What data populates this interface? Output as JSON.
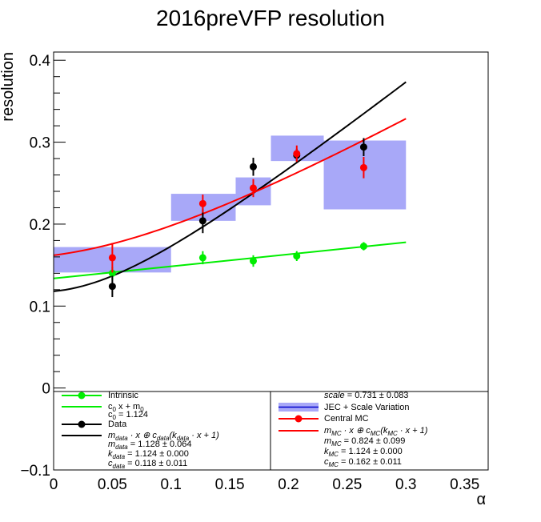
{
  "chart_data": {
    "type": "scatter",
    "title": "2016preVFP resolution",
    "xlabel": "α",
    "ylabel": "resolution",
    "xlim": [
      0,
      0.37
    ],
    "ylim": [
      -0.1,
      0.41
    ],
    "x_ticks": [
      "0",
      "0.05",
      "0.1",
      "0.15",
      "0.2",
      "0.25",
      "0.3",
      "0.35"
    ],
    "y_ticks": [
      "−0.1",
      "0",
      "0.1",
      "0.2",
      "0.3",
      "0.4"
    ],
    "grid": false,
    "legend_placement": "bottom",
    "series": [
      {
        "name": "Intrinsic",
        "color": "#00ee00",
        "x": [
          0.05,
          0.127,
          0.17,
          0.207,
          0.264
        ],
        "y": [
          0.14,
          0.159,
          0.155,
          0.161,
          0.173
        ],
        "yerr": [
          0.008,
          0.008,
          0.007,
          0.006,
          0.005
        ]
      },
      {
        "name": "Data",
        "color": "#000000",
        "x": [
          0.05,
          0.127,
          0.17,
          0.207,
          0.264
        ],
        "y": [
          0.124,
          0.204,
          0.27,
          0.284,
          0.294
        ],
        "yerr": [
          0.013,
          0.015,
          0.011,
          0.008,
          0.011
        ]
      },
      {
        "name": "Central MC",
        "color": "#ff0000",
        "x": [
          0.05,
          0.127,
          0.17,
          0.207,
          0.264
        ],
        "y": [
          0.159,
          0.225,
          0.244,
          0.286,
          0.269
        ],
        "yerr": [
          0.018,
          0.011,
          0.011,
          0.01,
          0.013
        ]
      }
    ],
    "boxes": {
      "name": "JEC + Scale Variation",
      "color": "#a8a8f8",
      "items": [
        {
          "x0": 0.0,
          "x1": 0.1,
          "y0": 0.141,
          "y1": 0.172
        },
        {
          "x0": 0.1,
          "x1": 0.155,
          "y0": 0.204,
          "y1": 0.237
        },
        {
          "x0": 0.155,
          "x1": 0.185,
          "y0": 0.223,
          "y1": 0.257
        },
        {
          "x0": 0.185,
          "x1": 0.23,
          "y0": 0.277,
          "y1": 0.308
        },
        {
          "x0": 0.23,
          "x1": 0.3,
          "y0": 0.218,
          "y1": 0.302
        }
      ]
    },
    "fits": [
      {
        "name": "c0 x + m0",
        "color": "#00ee00",
        "x_range": [
          0,
          0.3
        ],
        "y_at": [
          0.1338,
          0.1778
        ]
      },
      {
        "name": "data fit",
        "color": "#000000",
        "x_range": [
          0,
          0.3
        ],
        "m": 1.128,
        "k": 1.124,
        "c": 0.118
      },
      {
        "name": "MC fit",
        "color": "#ff0000",
        "x_range": [
          0,
          0.3
        ],
        "m": 0.824,
        "k": 1.124,
        "c": 0.162
      }
    ]
  },
  "legend": {
    "left": {
      "intrinsic": "Intrinsic",
      "fit_c0_main": "c",
      "fit_c0_sub": "0",
      "fit_c0_mid": " x + m",
      "fit_c0_sub2": "0",
      "c0_label": "c",
      "c0_sub": "0",
      "c0_value": " = 1.124",
      "data": "Data",
      "data_fit_formula": "m",
      "data_fit_sub": "data",
      "data_fit_rest": " · x ⊕ c",
      "data_fit_sub2": "data",
      "data_fit_rest2": "(k",
      "data_fit_sub3": "data",
      "data_fit_rest3": " · x + 1)",
      "m_data_label": "m",
      "m_data_sub": "data",
      "m_data_value": " = 1.128 ± 0.064",
      "k_data_label": "k",
      "k_data_sub": "data",
      "k_data_value": " = 1.124 ± 0.000",
      "c_data_label": "c",
      "c_data_sub": "data",
      "c_data_value": " = 0.118 ± 0.011"
    },
    "right": {
      "scale_label": "scale",
      "scale_value": " = 0.731 ± 0.083",
      "jec": "JEC + Scale Variation",
      "central_mc": "Central MC",
      "mc_fit_formula": "m",
      "mc_fit_sub": "MC",
      "mc_fit_rest": " · x ⊕ c",
      "mc_fit_sub2": "MC",
      "mc_fit_rest2": "(k",
      "mc_fit_sub3": "MC",
      "mc_fit_rest3": " · x + 1)",
      "m_mc_label": "m",
      "m_mc_sub": "MC",
      "m_mc_value": " = 0.824 ± 0.099",
      "k_mc_label": "k",
      "k_mc_sub": "MC",
      "k_mc_value": " = 1.124 ± 0.000",
      "c_mc_label": "c",
      "c_mc_sub": "MC",
      "c_mc_value": " = 0.162 ± 0.011"
    }
  }
}
